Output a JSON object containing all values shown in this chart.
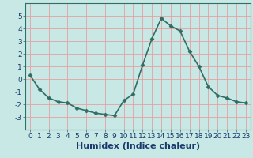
{
  "x": [
    0,
    1,
    2,
    3,
    4,
    5,
    6,
    7,
    8,
    9,
    10,
    11,
    12,
    13,
    14,
    15,
    16,
    17,
    18,
    19,
    20,
    21,
    22,
    23
  ],
  "y": [
    0.3,
    -0.8,
    -1.5,
    -1.8,
    -1.9,
    -2.3,
    -2.5,
    -2.7,
    -2.8,
    -2.9,
    -1.7,
    -1.2,
    1.1,
    3.2,
    4.8,
    4.2,
    3.8,
    2.2,
    1.0,
    -0.6,
    -1.3,
    -1.5,
    -1.8,
    -1.9
  ],
  "xlabel": "Humidex (Indice chaleur)",
  "line_color": "#2e6e65",
  "marker": "D",
  "markersize": 2.5,
  "bg_color": "#c8e8e5",
  "grid_color": "#e8a0a0",
  "ylim": [
    -4,
    6
  ],
  "xlim": [
    -0.5,
    23.5
  ],
  "yticks": [
    -3,
    -2,
    -1,
    0,
    1,
    2,
    3,
    4,
    5
  ],
  "xticks": [
    0,
    1,
    2,
    3,
    4,
    5,
    6,
    7,
    8,
    9,
    10,
    11,
    12,
    13,
    14,
    15,
    16,
    17,
    18,
    19,
    20,
    21,
    22,
    23
  ],
  "linewidth": 1.2,
  "xlabel_fontsize": 8,
  "tick_fontsize": 6.5,
  "xlabel_color": "#1a3a6e"
}
